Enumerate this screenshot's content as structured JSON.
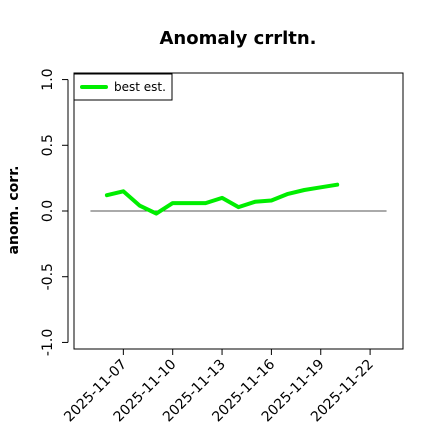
{
  "chart_data": {
    "type": "line",
    "title": "Anomaly crrltn.",
    "xlabel": "",
    "ylabel": "anom. corr.",
    "ylim": [
      -1.05,
      1.05
    ],
    "xlim": [
      "2025-11-04",
      "2025-11-24"
    ],
    "yticks": [
      "-1.0",
      "-0.5",
      "0.0",
      "0.5",
      "1.0"
    ],
    "xticks": [
      "2025-11-07",
      "2025-11-10",
      "2025-11-13",
      "2025-11-16",
      "2025-11-19",
      "2025-11-22"
    ],
    "legend": {
      "placement": "top-left",
      "entries": [
        "best est."
      ]
    },
    "reference_line": {
      "y": 0,
      "from": "2025-11-05",
      "to": "2025-11-23",
      "color": "#555555"
    },
    "colors": {
      "series": "#00ee00",
      "axis": "#000000"
    },
    "series": [
      {
        "name": "best est.",
        "x": [
          "2025-11-06",
          "2025-11-07",
          "2025-11-08",
          "2025-11-09",
          "2025-11-10",
          "2025-11-11",
          "2025-11-12",
          "2025-11-13",
          "2025-11-14",
          "2025-11-15",
          "2025-11-16",
          "2025-11-17",
          "2025-11-18",
          "2025-11-19",
          "2025-11-20"
        ],
        "y": [
          0.12,
          0.15,
          0.04,
          -0.02,
          0.06,
          0.06,
          0.06,
          0.1,
          0.03,
          0.07,
          0.08,
          0.13,
          0.16,
          0.18,
          0.2
        ]
      }
    ]
  }
}
